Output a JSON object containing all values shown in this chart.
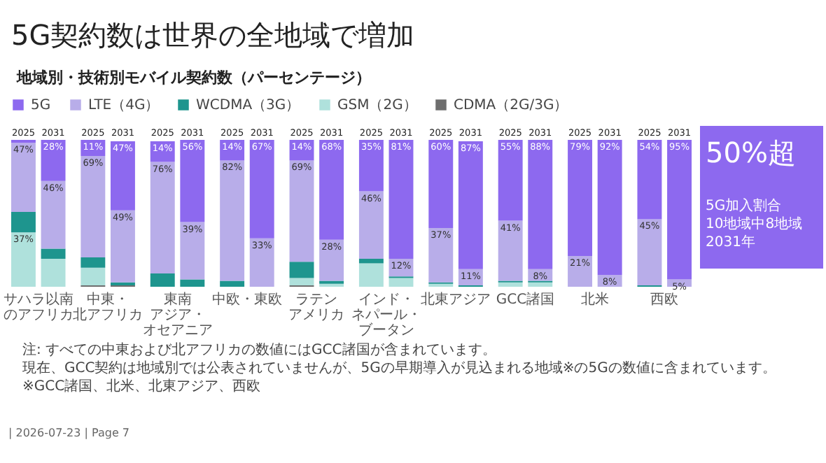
{
  "chart_data": {
    "type": "bar",
    "title": "5G契約数は世界の全地域で増加",
    "subtitle": "地域別・技術別モバイル契約数（パーセンテージ）",
    "categories": [
      "2025",
      "2031",
      "2025",
      "2031",
      "2025",
      "2031",
      "2025",
      "2031",
      "2025",
      "2031",
      "2025",
      "2031",
      "2025",
      "2031",
      "2025",
      "2031",
      "2025",
      "2031",
      "2025",
      "2031"
    ],
    "stacked": true,
    "tick_labels": "x",
    "legend": "top left",
    "series": [
      {
        "name": "CDMA（2G/3G）",
        "color": "#6e6e6e",
        "values": [
          null,
          null,
          1,
          1,
          null,
          null,
          null,
          null,
          1,
          null,
          null,
          null,
          null,
          null,
          null,
          null,
          null,
          null,
          null,
          null
        ]
      },
      {
        "name": "GSM（2G）",
        "color": "#afe1dc",
        "values": [
          37,
          19,
          12,
          null,
          null,
          null,
          null,
          null,
          5,
          2,
          16,
          6,
          2,
          null,
          3,
          3,
          null,
          null,
          null,
          null
        ],
        "value_labels": [
          "37%",
          null,
          null,
          null,
          null,
          null,
          null,
          null,
          null,
          null,
          null,
          null,
          null,
          null,
          null,
          null,
          null,
          null,
          null,
          null
        ]
      },
      {
        "name": "WCDMA（3G）",
        "color": "#1e958e",
        "values": [
          14,
          7,
          7,
          2,
          9,
          5,
          4,
          null,
          11,
          2,
          3,
          1,
          1,
          1,
          1,
          1,
          null,
          null,
          1,
          null
        ]
      },
      {
        "name": "LTE（4G）",
        "color": "#b8ade9",
        "values": [
          47,
          46,
          69,
          49,
          76,
          39,
          82,
          33,
          69,
          28,
          46,
          12,
          37,
          11,
          41,
          8,
          21,
          8,
          45,
          5
        ],
        "value_labels": [
          "47%",
          "46%",
          "69%",
          "49%",
          "76%",
          "39%",
          "82%",
          "33%",
          "69%",
          "28%",
          "46%",
          "12%",
          "37%",
          "11%",
          "41%",
          "8%",
          "21%",
          "8%",
          "45%",
          "5%"
        ]
      },
      {
        "name": "5G",
        "color": "#8d69ef",
        "values": [
          2,
          28,
          11,
          47,
          14,
          56,
          14,
          67,
          14,
          68,
          35,
          81,
          60,
          87,
          55,
          88,
          79,
          92,
          54,
          95
        ],
        "value_labels": [
          null,
          "28%",
          "11%",
          "47%",
          "14%",
          "56%",
          "14%",
          "67%",
          "14%",
          "68%",
          "35%",
          "81%",
          "60%",
          "87%",
          "55%",
          "88%",
          "79%",
          "92%",
          "54%",
          "95%"
        ]
      }
    ],
    "annotations": [
      "サハラ以南のアフリカ",
      "中東・北アフリカ",
      "東南アジア・オセアニア",
      "中欧・東欧",
      "ラテンアメリカ",
      "インド・ネパール・ブータン",
      "北東アジア",
      "GCC諸国",
      "北米",
      "西欧",
      "50%超",
      "5G加入割合\n10地域中8地域\n2031年",
      "注: すべての中東および北アフリカの数値にはGCC諸国が含まれています。",
      "現在、GCC契約は地域別では公表されていませんが、5Gの早期導入が見込まれる地域※の5Gの数値に含まれています。",
      "※GCC諸国、北米、北東アジア、西欧",
      "| 2026-07-23 | Page 7"
    ]
  }
}
